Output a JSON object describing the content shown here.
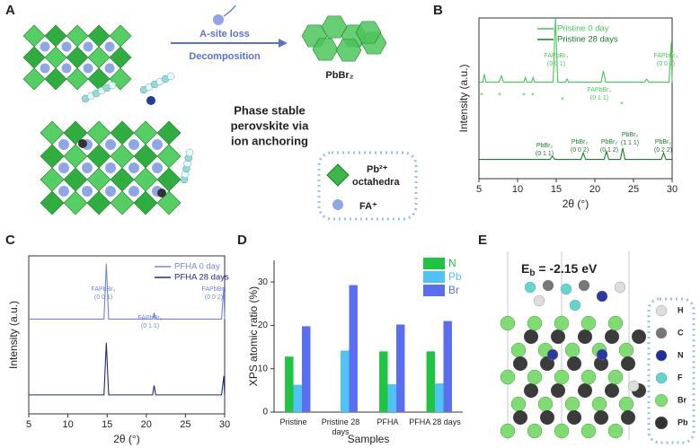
{
  "panel_labels": [
    "A",
    "B",
    "C",
    "D",
    "E"
  ],
  "panel_a": {
    "arrow_top": "A-site loss",
    "arrow_bottom": "Decomposition",
    "product": "PbBr₂",
    "caption": [
      "Phase stable",
      "perovskite via",
      "ion anchoring"
    ],
    "legend_octahedra": [
      "Pb²⁺",
      "octahedra"
    ],
    "legend_fa": "FA⁺"
  },
  "panel_e": {
    "energy": {
      "main": "E",
      "sub": "b",
      "rest": " = -2.15 eV"
    },
    "legend": [
      "H",
      "C",
      "N",
      "F",
      "Br",
      "Pb"
    ]
  },
  "chart_data": [
    {
      "type": "line",
      "xlabel": "2θ (°)",
      "ylabel": "Intensity (a.u.)",
      "xlim": [
        5,
        30
      ],
      "xticks": [
        5,
        10,
        15,
        20,
        25,
        30
      ],
      "ylim": [
        0,
        100
      ],
      "legend": "upper right",
      "series": [
        {
          "name": "Pristine 0 day",
          "color": "#46c757",
          "x": [
            5,
            5.5,
            5.7,
            5.9,
            7.6,
            7.9,
            8.2,
            10.8,
            11.0,
            11.2,
            11.8,
            12.0,
            12.2,
            14.6,
            14.9,
            15.2,
            16.2,
            16.4,
            16.6,
            20.8,
            21.1,
            21.4,
            26.4,
            26.7,
            27.0,
            29.6,
            29.9,
            30
          ],
          "values": [
            60,
            60,
            65,
            60,
            60,
            64,
            60,
            60,
            63,
            60,
            60,
            63,
            60,
            60,
            100,
            60,
            60,
            62,
            60,
            60,
            67,
            60,
            60,
            62,
            60,
            60,
            85,
            60
          ]
        },
        {
          "name": "Pristine 28 days",
          "color": "#1b7a2b",
          "x": [
            5,
            14.2,
            14.5,
            14.8,
            18.2,
            18.5,
            18.8,
            21.2,
            21.5,
            21.8,
            23.3,
            23.6,
            23.9,
            28.6,
            28.9,
            29.2,
            30
          ],
          "values": [
            12,
            12,
            14,
            12,
            12,
            16,
            12,
            12,
            17,
            12,
            12,
            19,
            12,
            12,
            16,
            12,
            12
          ]
        }
      ],
      "annotations": [
        {
          "lines": [
            "FAPbBr₃",
            "(0 0 1)"
          ]
        },
        {
          "lines": [
            "FAPbBr₃",
            "(0 1 1)"
          ]
        },
        {
          "lines": [
            "FAPbBr₃",
            "(0 0 2)"
          ]
        },
        {
          "lines": [
            "PbBr₂",
            "(0 1 1)"
          ]
        },
        {
          "lines": [
            "PbBr₂",
            "(0 0 2)"
          ]
        },
        {
          "lines": [
            "PbBr₂",
            "(0 1 2)"
          ]
        },
        {
          "lines": [
            "PbBr₂",
            "(1 1 1)"
          ]
        },
        {
          "lines": [
            "PbBr₂",
            "(0 2 2)"
          ]
        }
      ],
      "markers": [
        "*",
        "*",
        "*",
        "*",
        "*",
        "*"
      ]
    },
    {
      "type": "line",
      "xlabel": "2θ (°)",
      "ylabel": "Intensity (a.u.)",
      "xlim": [
        5,
        30
      ],
      "xticks": [
        5,
        10,
        15,
        20,
        25,
        30
      ],
      "ylim": [
        0,
        100
      ],
      "legend": "upper right",
      "series": [
        {
          "name": "PFHA 0 day",
          "color": "#7385dd",
          "x": [
            5,
            14.6,
            14.9,
            15.2,
            20.8,
            21.0,
            21.2,
            29.6,
            29.9,
            30
          ],
          "values": [
            60,
            60,
            95,
            60,
            60,
            64,
            60,
            60,
            80,
            60
          ]
        },
        {
          "name": "PFHA 28 days",
          "color": "#1f2a7e",
          "x": [
            5,
            14.6,
            14.9,
            15.2,
            20.8,
            21.0,
            21.2,
            29.6,
            29.9,
            30
          ],
          "values": [
            12,
            12,
            45,
            12,
            12,
            18,
            12,
            12,
            24,
            12
          ]
        }
      ],
      "annotations": [
        {
          "lines": [
            "FAPbBr₃",
            "(0 0 1)"
          ]
        },
        {
          "lines": [
            "FAPbBr₃",
            "(0 1 1)"
          ]
        },
        {
          "lines": [
            "FAPbBr₃",
            "(0 0 2)"
          ]
        }
      ],
      "markers": []
    },
    {
      "type": "bar",
      "xlabel": "Samples",
      "ylabel": "XPS atomic ratio (%)",
      "categories": [
        "Pristine",
        "Pristine 28 days",
        "PFHA",
        "PFHA 28 days"
      ],
      "ylim": [
        0,
        35
      ],
      "yticks": [
        0,
        10,
        20,
        30
      ],
      "legend": "upper right",
      "series": [
        {
          "name": "N",
          "color": "#20c443",
          "values": [
            12.8,
            0,
            14,
            14
          ]
        },
        {
          "name": "Pb",
          "color": "#4fc3f5",
          "values": [
            6.3,
            14.2,
            6.4,
            6.6
          ]
        },
        {
          "name": "Br",
          "color": "#5b6ef0",
          "values": [
            19.8,
            29.3,
            20.2,
            21
          ]
        }
      ]
    }
  ]
}
